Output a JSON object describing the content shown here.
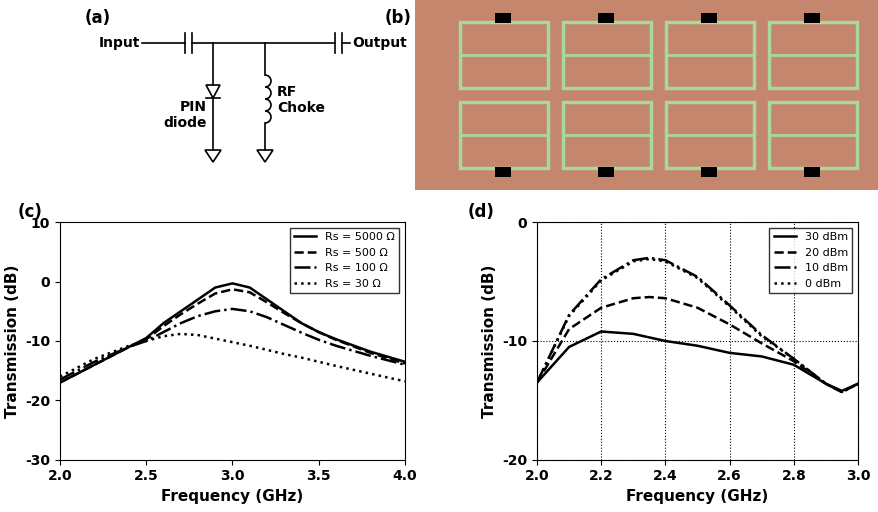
{
  "chart_data": [
    {
      "type": "line",
      "title": "(c)",
      "x_label": "Frequency (GHz)",
      "y_label": "Transmission (dB)",
      "x": [
        2.0,
        2.2,
        2.4,
        2.5,
        2.6,
        2.7,
        2.8,
        2.9,
        3.0,
        3.1,
        3.2,
        3.3,
        3.4,
        3.5,
        3.6,
        3.8,
        4.0
      ],
      "series": [
        {
          "name": "Rs = 5000 Ω",
          "color": "#000000",
          "line_style": "solid",
          "values": [
            -17,
            -14,
            -11,
            -9.5,
            -7,
            -5,
            -3,
            -1,
            -0.3,
            -1,
            -3,
            -5,
            -7,
            -8.5,
            -9.7,
            -11.8,
            -13.5
          ]
        },
        {
          "name": "Rs = 500 Ω",
          "color": "#000000",
          "line_style": "dashed",
          "values": [
            -17,
            -14,
            -11,
            -9.7,
            -7.5,
            -5.5,
            -3.7,
            -2,
            -1.3,
            -1.8,
            -3.5,
            -5.3,
            -7,
            -8.5,
            -9.8,
            -12,
            -13.8
          ]
        },
        {
          "name": "Rs = 100 Ω",
          "color": "#000000",
          "line_style": "dashdot",
          "values": [
            -16.5,
            -13.5,
            -11,
            -10,
            -8.5,
            -7,
            -5.8,
            -5,
            -4.6,
            -5,
            -6,
            -7.3,
            -8.6,
            -9.8,
            -10.8,
            -12.5,
            -14
          ]
        },
        {
          "name": "Rs = 30 Ω",
          "color": "#000000",
          "line_style": "dotted",
          "values": [
            -16,
            -13,
            -10.8,
            -10,
            -9.2,
            -8.8,
            -9,
            -9.6,
            -10.2,
            -10.8,
            -11.5,
            -12.2,
            -12.8,
            -13.5,
            -14.2,
            -15.5,
            -16.8
          ]
        }
      ],
      "xlim": [
        2.0,
        4.0
      ],
      "xticks": [
        {
          "value": 2.0,
          "label": "2.0"
        },
        {
          "value": 2.5,
          "label": "2.5"
        },
        {
          "value": 3.0,
          "label": "3.0"
        },
        {
          "value": 3.5,
          "label": "3.5"
        },
        {
          "value": 4.0,
          "label": "4.0"
        }
      ],
      "ylim": [
        -30,
        10
      ],
      "yticks": [
        -30,
        -20,
        -10,
        0,
        10
      ],
      "grid": false,
      "legend": "upper right"
    },
    {
      "type": "line",
      "title": "(d)",
      "x_label": "Frequency (GHz)",
      "y_label": "Transmission (dB)",
      "x": [
        2.0,
        2.1,
        2.2,
        2.3,
        2.35,
        2.4,
        2.5,
        2.6,
        2.7,
        2.8,
        2.9,
        2.95,
        3.0
      ],
      "series": [
        {
          "name": "30 dBm",
          "color": "#000000",
          "line_style": "solid",
          "values": [
            -13.5,
            -10.5,
            -9.2,
            -9.4,
            -9.7,
            -10,
            -10.4,
            -11,
            -11.3,
            -12,
            -13.6,
            -14.2,
            -13.6
          ]
        },
        {
          "name": "20 dBm",
          "color": "#000000",
          "line_style": "dashed",
          "values": [
            -13.5,
            -9,
            -7.2,
            -6.4,
            -6.3,
            -6.4,
            -7.2,
            -8.6,
            -10.2,
            -11.7,
            -13.6,
            -14.3,
            -13.6
          ]
        },
        {
          "name": "10 dBm",
          "color": "#000000",
          "line_style": "dashdot",
          "values": [
            -13.5,
            -7.8,
            -4.8,
            -3.2,
            -3,
            -3.2,
            -4.6,
            -7,
            -9.5,
            -11.5,
            -13.6,
            -14.3,
            -13.6
          ]
        },
        {
          "name": "0 dBm",
          "color": "#000000",
          "line_style": "dotted",
          "values": [
            -13.5,
            -7.9,
            -4.9,
            -3.3,
            -3.1,
            -3.3,
            -4.7,
            -7.1,
            -9.6,
            -11.5,
            -13.6,
            -14.3,
            -13.6
          ]
        }
      ],
      "xlim": [
        2.0,
        3.0
      ],
      "xticks": [
        {
          "value": 2.0,
          "label": "2.0"
        },
        {
          "value": 2.2,
          "label": "2.2"
        },
        {
          "value": 2.4,
          "label": "2.4"
        },
        {
          "value": 2.6,
          "label": "2.6"
        },
        {
          "value": 2.8,
          "label": "2.8"
        },
        {
          "value": 3.0,
          "label": "3.0"
        }
      ],
      "ylim": [
        -20,
        0
      ],
      "yticks": [
        -20,
        -10,
        0
      ],
      "grid": true,
      "legend": "upper right"
    }
  ],
  "diagram": {
    "title": "(a)",
    "input": "Input",
    "output": "Output",
    "diode": "PIN\ndiode",
    "choke": "RF\nChoke"
  },
  "photo": {
    "title": "(b)"
  }
}
